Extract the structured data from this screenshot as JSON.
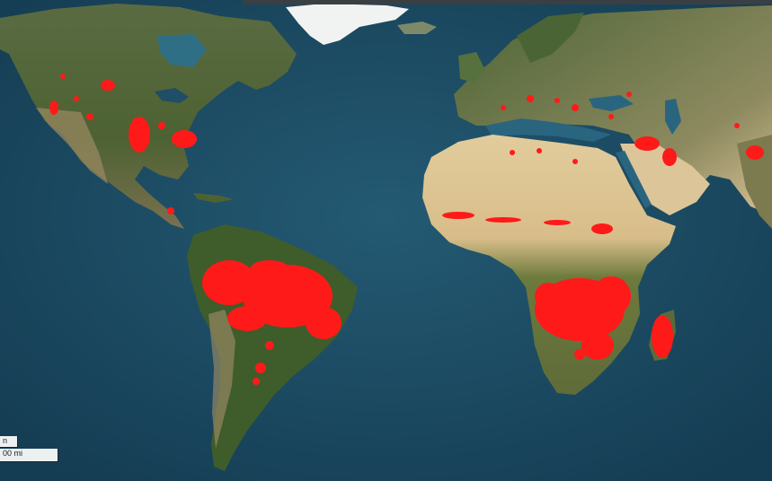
{
  "map": {
    "scale_bar": {
      "top_label": "n",
      "bottom_label": "00 mi"
    },
    "colors": {
      "ocean": "#1b4b63",
      "ocean_shallow": "#2f6f86",
      "land_forest": "#3f5a2c",
      "land_arid": "#d7c08e",
      "land_ice": "#f3f4f4",
      "fire_hotspot": "#ff1a1a"
    }
  }
}
